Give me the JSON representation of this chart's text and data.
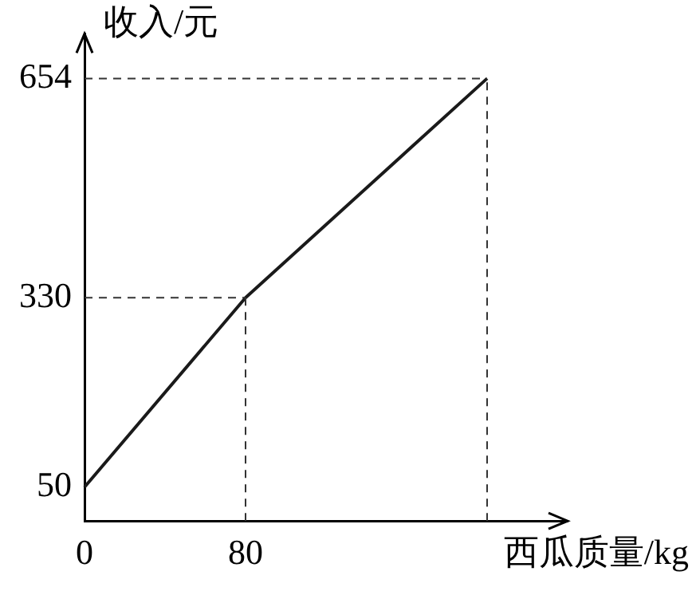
{
  "chart_data": {
    "type": "line",
    "xlabel": "西瓜质量/kg",
    "ylabel": "收入/元",
    "x": [
      0,
      80,
      200
    ],
    "series": [
      {
        "color": "#1a1a1a",
        "values": [
          50,
          330,
          654
        ]
      }
    ],
    "xlim": [
      0,
      240
    ],
    "xticks": [
      0,
      80
    ],
    "ylim": [
      0,
      720
    ],
    "yticks": [
      50,
      330,
      654
    ],
    "ref_lines": [
      {
        "axis": "y",
        "value": 330,
        "line_style": "dashed"
      },
      {
        "axis": "y",
        "value": 654,
        "line_style": "dashed"
      },
      {
        "axis": "x",
        "value": 80,
        "line_style": "dashed"
      },
      {
        "axis": "x",
        "value": 200,
        "line_style": "dashed"
      }
    ],
    "grid": false,
    "legend": false,
    "marker": "none",
    "line_style": "solid"
  }
}
